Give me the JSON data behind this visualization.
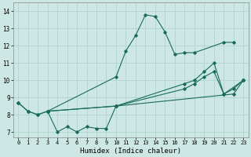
{
  "xlabel": "Humidex (Indice chaleur)",
  "xlim": [
    -0.5,
    23.5
  ],
  "ylim": [
    6.7,
    14.5
  ],
  "xticks": [
    0,
    1,
    2,
    3,
    4,
    5,
    6,
    7,
    8,
    9,
    10,
    11,
    12,
    13,
    14,
    15,
    16,
    17,
    18,
    19,
    20,
    21,
    22,
    23
  ],
  "yticks": [
    7,
    8,
    9,
    10,
    11,
    12,
    13,
    14
  ],
  "background_color": "#cde8e4",
  "grid_color": "#b0d4ce",
  "line_color": "#1a6b5a",
  "lines": [
    {
      "x": [
        0,
        1,
        2,
        3,
        10,
        11,
        12,
        13,
        14,
        15,
        16,
        17,
        18,
        21,
        22
      ],
      "y": [
        8.7,
        8.2,
        8.0,
        8.2,
        10.2,
        11.7,
        12.6,
        13.8,
        13.7,
        12.8,
        11.5,
        11.6,
        11.6,
        12.2,
        12.2
      ]
    },
    {
      "x": [
        0,
        1,
        2,
        3,
        4,
        5,
        6,
        7,
        8,
        9,
        10,
        22,
        23
      ],
      "y": [
        8.7,
        8.2,
        8.0,
        8.2,
        7.0,
        7.3,
        7.0,
        7.3,
        7.2,
        7.2,
        8.5,
        9.2,
        10.0
      ]
    },
    {
      "x": [
        3,
        10,
        17,
        18,
        19,
        20,
        21,
        22,
        23
      ],
      "y": [
        8.2,
        8.5,
        9.5,
        9.8,
        10.2,
        10.5,
        9.2,
        9.5,
        10.0
      ]
    },
    {
      "x": [
        3,
        10,
        17,
        18,
        19,
        20,
        21,
        23
      ],
      "y": [
        8.2,
        8.5,
        9.8,
        10.0,
        10.5,
        11.0,
        9.2,
        10.0
      ]
    }
  ]
}
